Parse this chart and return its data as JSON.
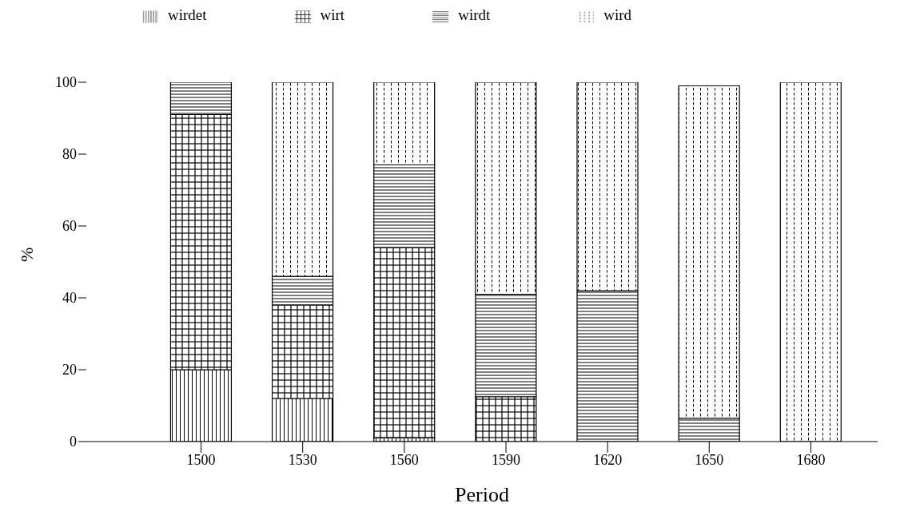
{
  "chart_data": {
    "type": "bar",
    "stacked": true,
    "xlabel": "Period",
    "ylabel": "%",
    "categories": [
      "1500",
      "1530",
      "1560",
      "1590",
      "1620",
      "1650",
      "1680"
    ],
    "series": [
      {
        "name": "wirdet",
        "color": "#000000",
        "values": [
          20,
          12,
          1,
          0,
          0,
          0,
          0
        ]
      },
      {
        "name": "wirt",
        "color": "#000000",
        "values": [
          71,
          26,
          53,
          12.5,
          0,
          0,
          0
        ]
      },
      {
        "name": "wirdt",
        "color": "#000000",
        "values": [
          9,
          8,
          23,
          28.5,
          42,
          6.5,
          0
        ]
      },
      {
        "name": "wird",
        "color": "#000000",
        "values": [
          0,
          54,
          23,
          59,
          58,
          92.5,
          100
        ]
      }
    ],
    "ylim": [
      0,
      100
    ],
    "yticks": [
      0,
      20,
      40,
      60,
      80,
      100
    ],
    "grid": false,
    "legend": "top"
  }
}
